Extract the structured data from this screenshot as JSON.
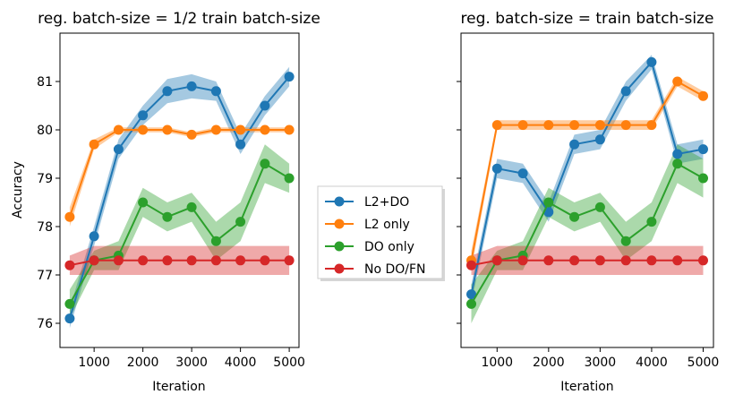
{
  "legend": {
    "placement": "center-between-panels",
    "entries": [
      {
        "label": "L2+DO",
        "color": "#1f77b4"
      },
      {
        "label": "L2 only",
        "color": "#ff7f0e"
      },
      {
        "label": "DO only",
        "color": "#2ca02c"
      },
      {
        "label": "No DO/FN",
        "color": "#d62728"
      }
    ]
  },
  "chart_data": [
    {
      "type": "line",
      "title": "reg. batch-size = 1/2 train batch-size",
      "xlabel": "Iteration",
      "ylabel": "Accuracy",
      "xlim": [
        300,
        5200
      ],
      "ylim": [
        75.5,
        82.0
      ],
      "xticks": [
        1000,
        2000,
        3000,
        4000,
        5000
      ],
      "yticks": [
        76,
        77,
        78,
        79,
        80,
        81
      ],
      "grid": false,
      "x": [
        500,
        1000,
        1500,
        2000,
        2500,
        3000,
        3500,
        4000,
        4500,
        5000
      ],
      "series": [
        {
          "name": "L2+DO",
          "color": "#1f77b4",
          "values": [
            76.1,
            77.8,
            79.6,
            80.3,
            80.8,
            80.9,
            80.8,
            79.7,
            80.5,
            81.1
          ],
          "lower": [
            75.9,
            77.6,
            79.4,
            80.1,
            80.55,
            80.65,
            80.6,
            79.5,
            80.3,
            80.9
          ],
          "upper": [
            76.3,
            78.0,
            79.8,
            80.5,
            81.05,
            81.15,
            81.0,
            79.9,
            80.7,
            81.3
          ]
        },
        {
          "name": "L2 only",
          "color": "#ff7f0e",
          "values": [
            78.2,
            79.7,
            80.0,
            80.0,
            80.0,
            79.9,
            80.0,
            80.0,
            80.0,
            80.0
          ],
          "lower": [
            78.0,
            79.6,
            79.95,
            79.95,
            79.95,
            79.85,
            79.95,
            79.95,
            79.95,
            79.95
          ],
          "upper": [
            78.4,
            79.8,
            80.05,
            80.05,
            80.05,
            79.95,
            80.05,
            80.05,
            80.05,
            80.05
          ]
        },
        {
          "name": "DO only",
          "color": "#2ca02c",
          "values": [
            76.4,
            77.3,
            77.4,
            78.5,
            78.2,
            78.4,
            77.7,
            78.1,
            79.3,
            79.0
          ],
          "lower": [
            76.1,
            77.1,
            77.1,
            78.2,
            77.9,
            78.1,
            77.3,
            77.7,
            78.9,
            78.7
          ],
          "upper": [
            76.7,
            77.5,
            77.7,
            78.8,
            78.5,
            78.7,
            78.1,
            78.5,
            79.7,
            79.3
          ]
        },
        {
          "name": "No DO/FN",
          "color": "#d62728",
          "values": [
            77.2,
            77.3,
            77.3,
            77.3,
            77.3,
            77.3,
            77.3,
            77.3,
            77.3,
            77.3
          ],
          "lower": [
            77.0,
            77.0,
            77.0,
            77.0,
            77.0,
            77.0,
            77.0,
            77.0,
            77.0,
            77.0
          ],
          "upper": [
            77.4,
            77.6,
            77.6,
            77.6,
            77.6,
            77.6,
            77.6,
            77.6,
            77.6,
            77.6
          ]
        }
      ]
    },
    {
      "type": "line",
      "title": "reg. batch-size = train batch-size",
      "xlabel": "Iteration",
      "ylabel": "",
      "xlim": [
        300,
        5200
      ],
      "ylim": [
        75.5,
        82.0
      ],
      "xticks": [
        1000,
        2000,
        3000,
        4000,
        5000
      ],
      "yticks": [
        76,
        77,
        78,
        79,
        80,
        81
      ],
      "show_ytick_labels": false,
      "grid": false,
      "x": [
        500,
        1000,
        1500,
        2000,
        2500,
        3000,
        3500,
        4000,
        4500,
        5000
      ],
      "series": [
        {
          "name": "L2+DO",
          "color": "#1f77b4",
          "values": [
            76.6,
            79.2,
            79.1,
            78.3,
            79.7,
            79.8,
            80.8,
            81.4,
            79.5,
            79.6
          ],
          "lower": [
            76.4,
            79.0,
            78.9,
            78.1,
            79.5,
            79.6,
            80.6,
            81.25,
            79.3,
            79.4
          ],
          "upper": [
            76.8,
            79.4,
            79.3,
            78.5,
            79.9,
            80.0,
            81.0,
            81.55,
            79.7,
            79.8
          ]
        },
        {
          "name": "L2 only",
          "color": "#ff7f0e",
          "values": [
            77.3,
            80.1,
            80.1,
            80.1,
            80.1,
            80.1,
            80.1,
            80.1,
            81.0,
            80.7
          ],
          "lower": [
            77.1,
            80.0,
            80.0,
            80.0,
            80.0,
            80.0,
            80.0,
            80.0,
            80.9,
            80.6
          ],
          "upper": [
            77.5,
            80.2,
            80.2,
            80.2,
            80.2,
            80.2,
            80.2,
            80.2,
            81.1,
            80.8
          ]
        },
        {
          "name": "DO only",
          "color": "#2ca02c",
          "values": [
            76.4,
            77.3,
            77.4,
            78.5,
            78.2,
            78.4,
            77.7,
            78.1,
            79.3,
            79.0
          ],
          "lower": [
            76.0,
            77.1,
            77.1,
            78.2,
            77.9,
            78.1,
            77.3,
            77.7,
            78.9,
            78.6
          ],
          "upper": [
            76.8,
            77.5,
            77.7,
            78.8,
            78.5,
            78.7,
            78.1,
            78.5,
            79.7,
            79.4
          ]
        },
        {
          "name": "No DO/FN",
          "color": "#d62728",
          "values": [
            77.2,
            77.3,
            77.3,
            77.3,
            77.3,
            77.3,
            77.3,
            77.3,
            77.3,
            77.3
          ],
          "lower": [
            77.0,
            77.0,
            77.0,
            77.0,
            77.0,
            77.0,
            77.0,
            77.0,
            77.0,
            77.0
          ],
          "upper": [
            77.4,
            77.6,
            77.6,
            77.6,
            77.6,
            77.6,
            77.6,
            77.6,
            77.6,
            77.6
          ]
        }
      ]
    }
  ]
}
